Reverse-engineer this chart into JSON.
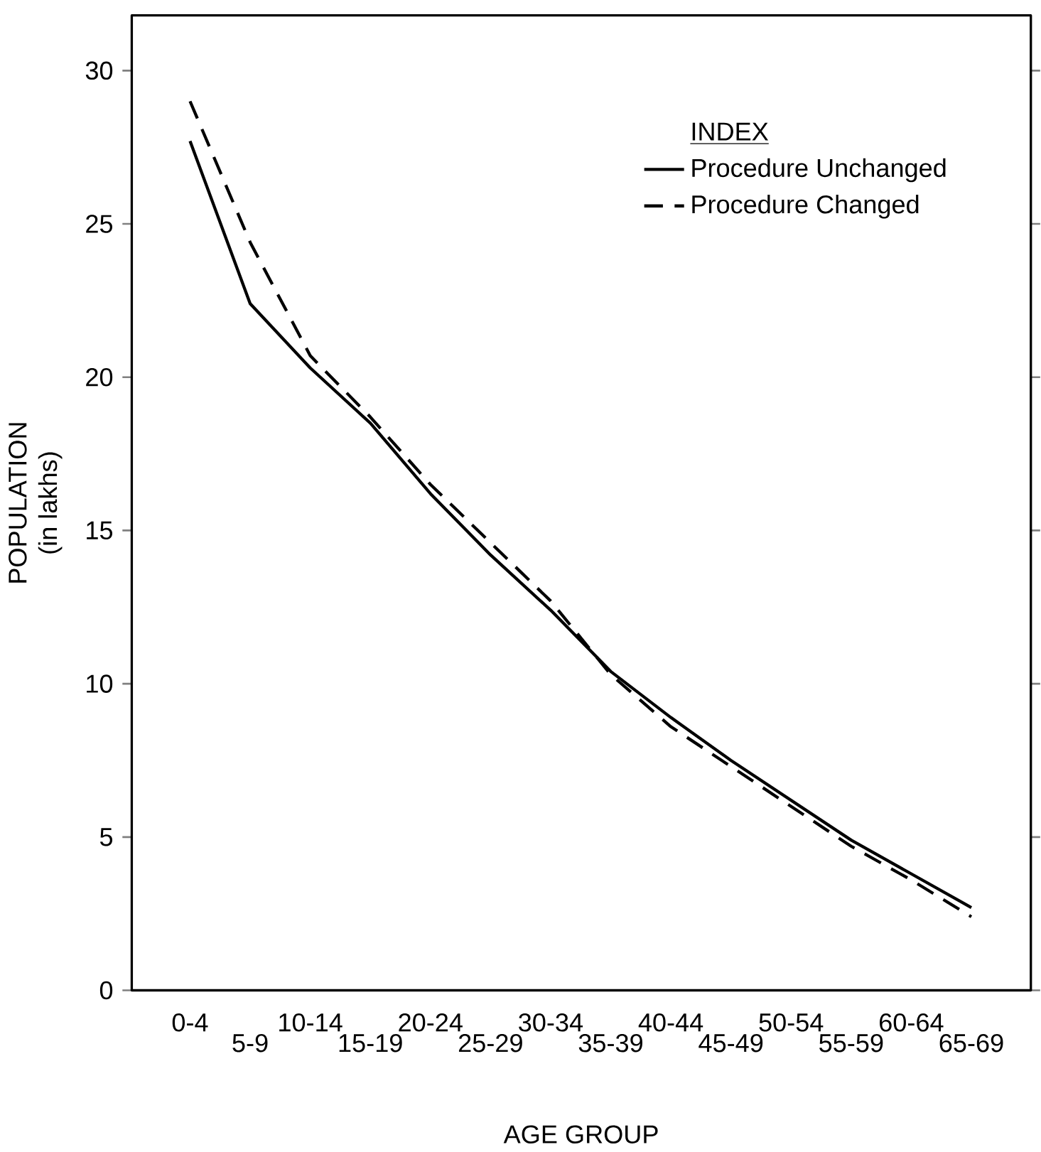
{
  "chart_data": {
    "type": "line",
    "xlabel": "AGE GROUP",
    "ylabel": "POPULATION\n(in lakhs)",
    "legend_title": "INDEX",
    "categories": [
      "0-4",
      "5-9",
      "10-14",
      "15-19",
      "20-24",
      "25-29",
      "30-34",
      "35-39",
      "40-44",
      "45-49",
      "50-54",
      "55-59",
      "60-64",
      "65-69"
    ],
    "series": [
      {
        "name": "Procedure  Unchanged",
        "color": "#000000",
        "line_style": "solid",
        "values": [
          27.7,
          22.4,
          20.3,
          18.5,
          16.2,
          14.2,
          12.4,
          10.4,
          8.9,
          7.5,
          6.2,
          4.9,
          3.8,
          2.7
        ]
      },
      {
        "name": "Procedure  Changed",
        "color": "#000000",
        "line_style": "dashed",
        "values": [
          29.0,
          24.4,
          20.7,
          18.7,
          16.5,
          14.6,
          12.7,
          10.3,
          8.6,
          7.3,
          6.0,
          4.7,
          3.6,
          2.4
        ]
      }
    ],
    "ylim": [
      0,
      31.8
    ],
    "yticks": [
      0,
      5,
      10,
      15,
      20,
      25,
      30
    ],
    "grid": false,
    "legend": "top right",
    "marker": "none"
  }
}
